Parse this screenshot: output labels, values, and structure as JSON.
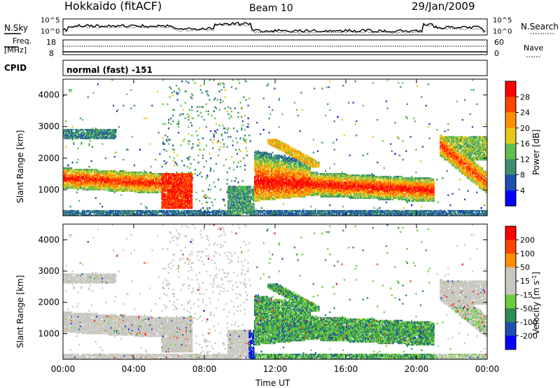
{
  "header": {
    "site": "Hokkaido (fitACF)",
    "beam": "Beam 10",
    "date": "29/Jan/2009"
  },
  "top_panels": {
    "nsky_label": "N.Sky",
    "nsearch_label": "N.Search",
    "noise_ticks_left": [
      "10^5",
      "10^0"
    ],
    "noise_ticks_right": [
      "10^5",
      "10^0"
    ],
    "freq_label_1": "Freq.",
    "freq_label_2": "[MHz]",
    "freq_ticks_left": [
      "18",
      "8"
    ],
    "nave_ticks_right": [
      "60",
      "0"
    ],
    "nave_label": "Nave",
    "cpid_label": "CPID",
    "cpid_value": "normal (fast) -151"
  },
  "colors": {
    "power_scale": [
      "#0000ff",
      "#1f4fb0",
      "#3d8f6e",
      "#5fbf4f",
      "#e8c81c",
      "#ff8f00",
      "#ff4500",
      "#ff0000"
    ],
    "velocity_scale": [
      "#ff0000",
      "#ff4500",
      "#ff8f00",
      "#c8c8c0",
      "#c8c8c0",
      "#6ccc3c",
      "#2e8b57",
      "#1f4fb0",
      "#0000ff"
    ]
  },
  "chart_data": [
    {
      "type": "heatmap",
      "title": "Power",
      "ylabel": "Slant Range [km]",
      "xlabel": "Time UT",
      "x_ticks": [
        "00:00",
        "04:00",
        "08:00",
        "12:00",
        "16:00",
        "20:00",
        "00:00"
      ],
      "xlim_hours": [
        0,
        24
      ],
      "y_ticks": [
        "1000",
        "2000",
        "3000",
        "4000"
      ],
      "ylim": [
        180,
        4500
      ],
      "colorbar_label": "Power [dB]",
      "colorbar_ticks": [
        "4",
        "8",
        "12",
        "16",
        "20",
        "24",
        "28"
      ],
      "colorbar_range": [
        0,
        32
      ]
    },
    {
      "type": "heatmap",
      "title": "Velocity",
      "ylabel": "Slant Range [km]",
      "xlabel": "Time UT",
      "x_ticks": [
        "00:00",
        "04:00",
        "08:00",
        "12:00",
        "16:00",
        "20:00",
        "00:00"
      ],
      "xlim_hours": [
        0,
        24
      ],
      "y_ticks": [
        "1000",
        "2000",
        "3000",
        "4000"
      ],
      "ylim": [
        180,
        4500
      ],
      "colorbar_label": "Velocity [m s^-1]",
      "colorbar_ticks": [
        "200",
        "100",
        "50",
        "15",
        "-15",
        "-50",
        "-100",
        "-200"
      ]
    }
  ],
  "axis": {
    "xlabel": "Time UT",
    "ylabel": "Slant Range [km]",
    "power_cbar_label": "Power [dB]",
    "velocity_cbar_label": "Velocity [m s",
    "velocity_cbar_exp": "-1",
    "velocity_cbar_close": "]"
  }
}
